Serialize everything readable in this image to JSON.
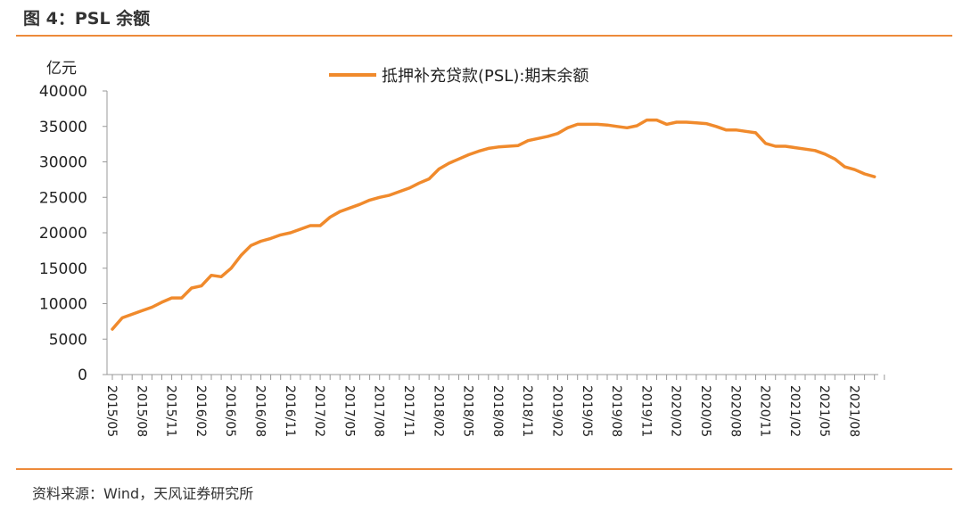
{
  "figure_title": "图 4：PSL 余额",
  "source": "资料来源：Wind，天风证券研究所",
  "colors": {
    "accent": "#ED8A3A",
    "series": "#F08A2C"
  },
  "chart_data": {
    "type": "line",
    "unit_label": "亿元",
    "ylim": [
      0,
      40000
    ],
    "yticks": [
      0,
      5000,
      10000,
      15000,
      20000,
      25000,
      30000,
      35000,
      40000
    ],
    "x_tick_labels": [
      "2015/05",
      "2015/08",
      "2015/11",
      "2016/02",
      "2016/05",
      "2016/08",
      "2016/11",
      "2017/02",
      "2017/05",
      "2017/08",
      "2017/11",
      "2018/02",
      "2018/05",
      "2018/08",
      "2018/11",
      "2019/02",
      "2019/05",
      "2019/08",
      "2019/11",
      "2020/02",
      "2020/05",
      "2020/08",
      "2020/11",
      "2021/02",
      "2021/05",
      "2021/08"
    ],
    "legend_position": "top-center",
    "grid": false,
    "series": [
      {
        "name": "抵押补充贷款(PSL):期末余额",
        "x": [
          "2015/05",
          "2015/06",
          "2015/07",
          "2015/08",
          "2015/09",
          "2015/10",
          "2015/11",
          "2015/12",
          "2016/01",
          "2016/02",
          "2016/03",
          "2016/04",
          "2016/05",
          "2016/06",
          "2016/07",
          "2016/08",
          "2016/09",
          "2016/10",
          "2016/11",
          "2016/12",
          "2017/01",
          "2017/02",
          "2017/03",
          "2017/04",
          "2017/05",
          "2017/06",
          "2017/07",
          "2017/08",
          "2017/09",
          "2017/10",
          "2017/11",
          "2017/12",
          "2018/01",
          "2018/02",
          "2018/03",
          "2018/04",
          "2018/05",
          "2018/06",
          "2018/07",
          "2018/08",
          "2018/09",
          "2018/10",
          "2018/11",
          "2018/12",
          "2019/01",
          "2019/02",
          "2019/03",
          "2019/04",
          "2019/05",
          "2019/06",
          "2019/07",
          "2019/08",
          "2019/09",
          "2019/10",
          "2019/11",
          "2019/12",
          "2020/01",
          "2020/02",
          "2020/03",
          "2020/04",
          "2020/05",
          "2020/06",
          "2020/07",
          "2020/08",
          "2020/09",
          "2020/10",
          "2020/11",
          "2020/12",
          "2021/01",
          "2021/02",
          "2021/03",
          "2021/04",
          "2021/05",
          "2021/06",
          "2021/07",
          "2021/08",
          "2021/09",
          "2021/10"
        ],
        "values": [
          6400,
          8000,
          8500,
          9000,
          9500,
          10200,
          10800,
          10800,
          12200,
          12500,
          14000,
          13800,
          15000,
          16800,
          18200,
          18800,
          19200,
          19700,
          20000,
          20500,
          21000,
          21000,
          22200,
          23000,
          23500,
          24000,
          24600,
          25000,
          25300,
          25800,
          26300,
          27000,
          27600,
          29000,
          29800,
          30400,
          31000,
          31500,
          31900,
          32100,
          32200,
          32300,
          33000,
          33300,
          33600,
          34000,
          34800,
          35300,
          35300,
          35300,
          35200,
          35000,
          34800,
          35100,
          35900,
          35900,
          35300,
          35600,
          35600,
          35500,
          35400,
          35000,
          34500,
          34500,
          34300,
          34100,
          32600,
          32200,
          32200,
          32000,
          31800,
          31600,
          31100,
          30400,
          29300,
          28900,
          28300,
          27900
        ]
      }
    ]
  }
}
